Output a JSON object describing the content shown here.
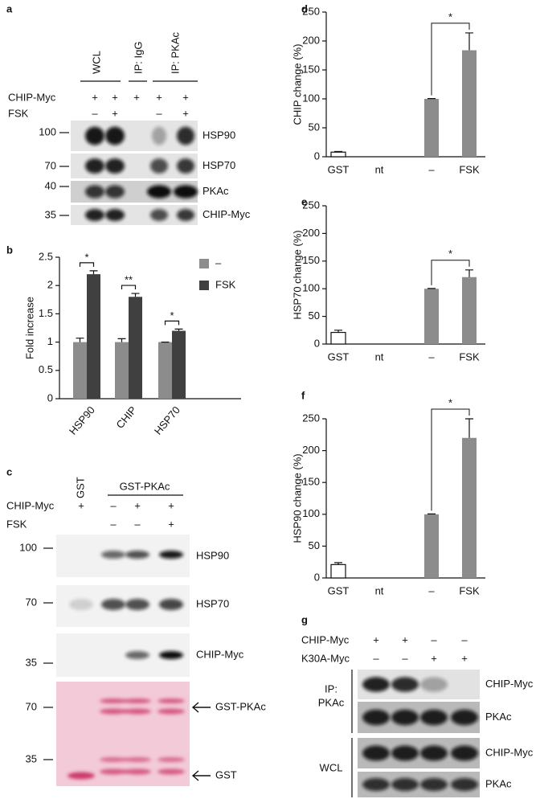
{
  "blot_a": {
    "label": "a",
    "headers": [
      "WCL",
      "IP: IgG",
      "IP: PKAc"
    ],
    "rows": [
      {
        "name": "CHIP-Myc",
        "signs": [
          "+",
          "+",
          "+",
          "+",
          "+"
        ]
      },
      {
        "name": "FSK",
        "signs": [
          "–",
          "+",
          null,
          "–",
          "+"
        ]
      }
    ],
    "markers": [
      100,
      70,
      40,
      35
    ],
    "bands": [
      "HSP90",
      "HSP70",
      "PKAc",
      "CHIP-Myc"
    ]
  },
  "chart_data": [
    {
      "label": "b",
      "type": "bar",
      "categories": [
        "HSP90",
        "CHIP",
        "HSP70"
      ],
      "series": [
        {
          "name": "–",
          "color": "#8c8c8c",
          "values": [
            1,
            1,
            1
          ],
          "errors": [
            0.07,
            0.06,
            0
          ]
        },
        {
          "name": "FSK",
          "color": "#404040",
          "values": [
            2.2,
            1.8,
            1.2
          ],
          "errors": [
            0.06,
            0.06,
            0.03
          ]
        }
      ],
      "ylim": [
        0,
        2.5
      ],
      "yticks": [
        0,
        0.5,
        1,
        1.5,
        2,
        2.5
      ],
      "ylabel": "Fold increase",
      "annotations": [
        "*",
        "**",
        "*"
      ]
    },
    {
      "label": "d",
      "type": "bar",
      "categories": [
        "GST",
        "nt",
        "–",
        "FSK"
      ],
      "values": [
        8,
        null,
        100,
        184
      ],
      "errors": [
        1,
        null,
        0.5,
        30
      ],
      "colors": [
        "#ffffff",
        "#8c8c8c",
        "#8c8c8c",
        "#8c8c8c"
      ],
      "ylim": [
        0,
        250
      ],
      "yticks": [
        0,
        50,
        100,
        150,
        200,
        250
      ],
      "ylabel": "CHIP change (%)",
      "annotations": [
        "*"
      ]
    },
    {
      "label": "e",
      "type": "bar",
      "categories": [
        "GST",
        "nt",
        "–",
        "FSK"
      ],
      "values": [
        21,
        null,
        100,
        121
      ],
      "errors": [
        4,
        null,
        0.5,
        13
      ],
      "colors": [
        "#ffffff",
        "#8c8c8c",
        "#8c8c8c",
        "#8c8c8c"
      ],
      "ylim": [
        0,
        250
      ],
      "yticks": [
        0,
        50,
        100,
        150,
        200,
        250
      ],
      "ylabel": "HSP70 change (%)",
      "annotations": [
        "*"
      ]
    },
    {
      "label": "f",
      "type": "bar",
      "categories": [
        "GST",
        "nt",
        "–",
        "FSK"
      ],
      "values": [
        21,
        null,
        100,
        220
      ],
      "errors": [
        3,
        null,
        0.5,
        30
      ],
      "colors": [
        "#ffffff",
        "#8c8c8c",
        "#8c8c8c",
        "#8c8c8c"
      ],
      "ylim": [
        0,
        250
      ],
      "yticks": [
        0,
        50,
        100,
        150,
        200,
        250
      ],
      "ylabel": "HSP90  change (%)",
      "annotations": [
        "*"
      ]
    }
  ],
  "blot_c": {
    "label": "c",
    "headers": [
      "GST",
      "GST-PKAc"
    ],
    "rows": [
      {
        "name": "CHIP-Myc",
        "signs": [
          "+",
          "–",
          "+",
          "+"
        ]
      },
      {
        "name": "FSK",
        "signs": [
          null,
          "–",
          "–",
          "+"
        ]
      }
    ],
    "markers": [
      100,
      70,
      35,
      70,
      35
    ],
    "bands": [
      "HSP90",
      "HSP70",
      "CHIP-Myc",
      "GST-PKAc",
      "GST"
    ]
  },
  "blot_g": {
    "label": "g",
    "rows": [
      {
        "name": "CHIP-Myc",
        "signs": [
          "+",
          "+",
          "–",
          "–"
        ]
      },
      {
        "name": "K30A-Myc",
        "signs": [
          "–",
          "–",
          "+",
          "+"
        ]
      }
    ],
    "groups": [
      [
        "IP:",
        "PKAc"
      ],
      [
        "WCL"
      ]
    ],
    "bands": [
      "CHIP-Myc",
      "PKAc",
      "CHIP-Myc",
      "PKAc"
    ]
  }
}
